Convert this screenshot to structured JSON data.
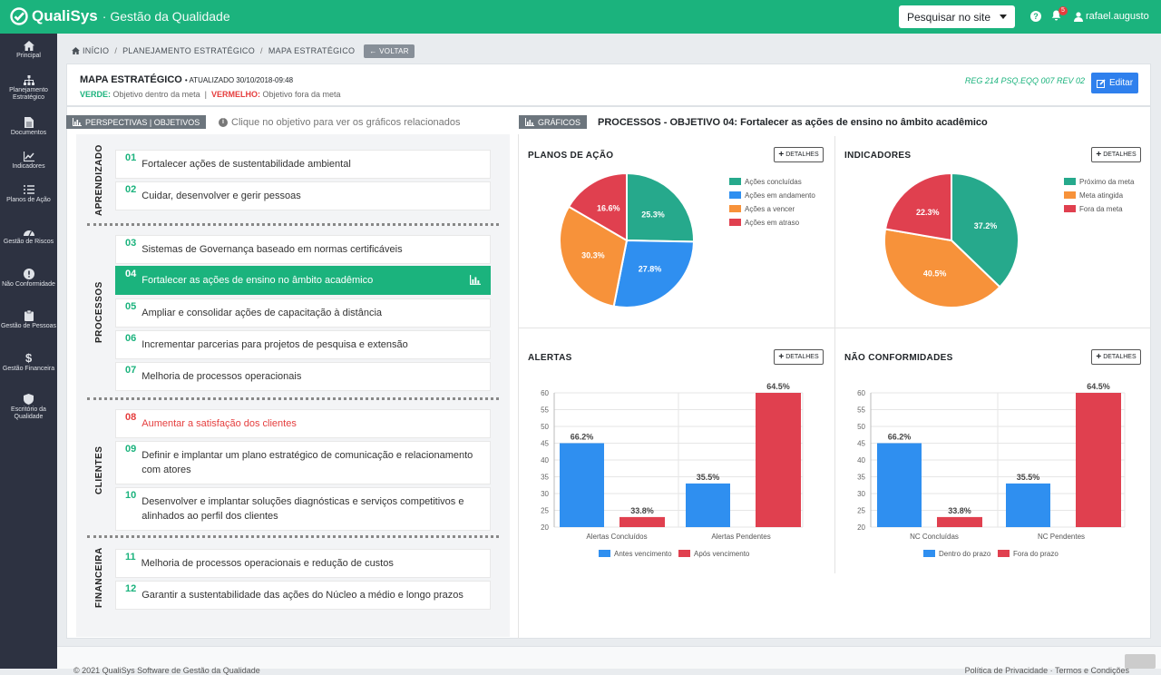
{
  "app": {
    "brand": "QualiSys",
    "subtitle": "· Gestão da Qualidade",
    "search_label": "Pesquisar no site",
    "notif_count": "5",
    "username": "rafael.augusto"
  },
  "sidebar": {
    "items": [
      {
        "label": "Principal",
        "icon": "home-icon"
      },
      {
        "label": "Planejamento Estratégico",
        "icon": "sitemap-icon"
      },
      {
        "label": "Documentos",
        "icon": "file-icon"
      },
      {
        "label": "Indicadores",
        "icon": "line-chart-icon"
      },
      {
        "label": "Planos de Ação",
        "icon": "list-icon"
      },
      {
        "label": "Gestão de Riscos",
        "icon": "gauge-icon"
      },
      {
        "label": "Não Conformidade",
        "icon": "exclamation-icon"
      },
      {
        "label": "Gestão de Pessoas",
        "icon": "clipboard-icon"
      },
      {
        "label": "Gestão Financeira",
        "icon": "dollar-icon"
      },
      {
        "label": "Escritório da Qualidade",
        "icon": "shield-icon"
      }
    ]
  },
  "breadcrumb": {
    "home": "INÍCIO",
    "level1": "PLANEJAMENTO ESTRATÉGICO",
    "level2": "MAPA ESTRATÉGICO",
    "back": "VOLTAR"
  },
  "header": {
    "title": "MAPA ESTRATÉGICO",
    "updated": "• ATUALIZADO 30/10/2018-09:48",
    "green_word": "VERDE:",
    "green_text": "Objetivo dentro da meta",
    "sep": "|",
    "red_word": "VERMELHO:",
    "red_text": "Objetivo fora da meta",
    "reg": "REG 214 PSQ.EQQ 007 REV 02",
    "edit": "Editar"
  },
  "perspectives": {
    "tag": "PERSPECTIVAS | OBJETIVOS",
    "info": "Clique no objetivo para ver os gráficos relacionados",
    "groups": [
      "APRENDIZADO",
      "PROCESSOS",
      "CLIENTES",
      "FINANCEIRA"
    ],
    "objectives": [
      {
        "num": "01",
        "text": "Fortalecer ações de sustentabilidade ambiental"
      },
      {
        "num": "02",
        "text": "Cuidar, desenvolver e gerir pessoas"
      },
      {
        "num": "03",
        "text": "Sistemas de Governança baseado em normas certificáveis"
      },
      {
        "num": "04",
        "text": "Fortalecer as ações de ensino no âmbito acadêmico"
      },
      {
        "num": "05",
        "text": "Ampliar e consolidar ações de capacitação à distância"
      },
      {
        "num": "06",
        "text": "Incrementar parcerias para projetos de pesquisa e extensão"
      },
      {
        "num": "07",
        "text": "Melhoria de processos operacionais"
      },
      {
        "num": "08",
        "text": "Aumentar a satisfação dos clientes"
      },
      {
        "num": "09",
        "text": "Definir e implantar um plano estratégico de comunicação e relacionamento com atores"
      },
      {
        "num": "10",
        "text": "Desenvolver e implantar soluções diagnósticas e serviços competitivos e alinhados ao perfil dos clientes"
      },
      {
        "num": "11",
        "text": "Melhoria de processos operacionais e redução de custos"
      },
      {
        "num": "12",
        "text": "Garantir a sustentabilidade das ações do Núcleo a médio e longo prazos"
      }
    ]
  },
  "graphs": {
    "tag": "GRÁFICOS",
    "title": "PROCESSOS - OBJETIVO 04: Fortalecer as ações de ensino no âmbito acadêmico",
    "details": "DETALHES"
  },
  "colors": {
    "green": "#1bb37d",
    "teal": "#26a98c",
    "blue": "#2f8ff0",
    "orange": "#f7923a",
    "red": "#e0404f"
  },
  "chart_data": [
    {
      "type": "pie",
      "title": "PLANOS DE AÇÃO",
      "labels": [
        "Ações concluídas",
        "Ações em andamento",
        "Ações a vencer",
        "Ações em atraso"
      ],
      "values": [
        25.3,
        27.8,
        30.3,
        16.6
      ],
      "value_labels": [
        "25.3%",
        "27.8%",
        "30.3%",
        "16.6%"
      ]
    },
    {
      "type": "pie",
      "title": "INDICADORES",
      "labels": [
        "Próximo da meta",
        "Meta atingida",
        "Fora da meta"
      ],
      "values": [
        37.2,
        40.5,
        22.3
      ],
      "value_labels": [
        "37.2%",
        "40.5%",
        "22.3%"
      ]
    },
    {
      "type": "bar",
      "title": "ALERTAS",
      "categories": [
        "Alertas Concluídos",
        "Alertas Pendentes"
      ],
      "series": [
        {
          "name": "Antes vencimento",
          "values": [
            45,
            33
          ],
          "labels": [
            "66.2%",
            "35.5%"
          ]
        },
        {
          "name": "Após vencimento",
          "values": [
            23,
            60
          ],
          "labels": [
            "33.8%",
            "64.5%"
          ]
        }
      ],
      "ylim": [
        20,
        60
      ],
      "yticks": [
        "60",
        "55",
        "50",
        "45",
        "40",
        "35",
        "30",
        "25",
        "20"
      ]
    },
    {
      "type": "bar",
      "title": "NÃO CONFORMIDADES",
      "categories": [
        "NC Concluídas",
        "NC Pendentes"
      ],
      "series": [
        {
          "name": "Dentro do prazo",
          "values": [
            45,
            33
          ],
          "labels": [
            "66.2%",
            "35.5%"
          ]
        },
        {
          "name": "Fora do prazo",
          "values": [
            23,
            60
          ],
          "labels": [
            "33.8%",
            "64.5%"
          ]
        }
      ],
      "ylim": [
        20,
        60
      ],
      "yticks": [
        "60",
        "55",
        "50",
        "45",
        "40",
        "35",
        "30",
        "25",
        "20"
      ]
    }
  ],
  "footer": {
    "left": "© 2021 QualiSys Software de Gestão da Qualidade",
    "right": "Política de Privacidade · Termos e Condições"
  }
}
